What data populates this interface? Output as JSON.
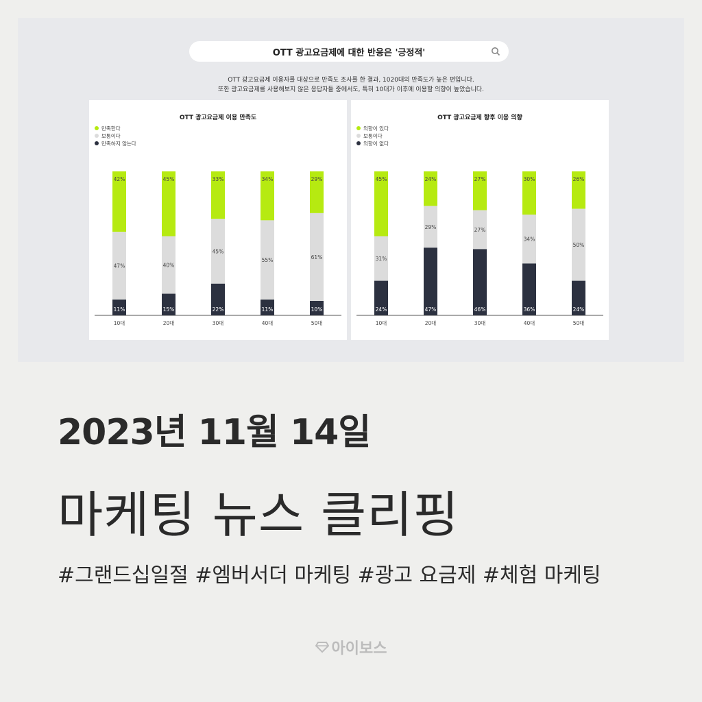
{
  "search": {
    "title": "OTT 광고요금제에 대한 반응은 '긍정적'"
  },
  "description": [
    "OTT 광고요금제 이용자를 대상으로 만족도 조사를 한 결과, 1020대의 만족도가 높은 편입니다.",
    "또한 광고요금제를 사용해보지 않은 응답자들 중에서도, 특히 10대가 이후에 이용할 의향이 높았습니다."
  ],
  "colors": {
    "green": "#b6ea11",
    "gray": "#dcdcdc",
    "navy": "#2c3140"
  },
  "chart_data": [
    {
      "type": "bar",
      "stacked": true,
      "title": "OTT 광고요금제 이용 만족도",
      "categories": [
        "10대",
        "20대",
        "30대",
        "40대",
        "50대"
      ],
      "series": [
        {
          "name": "만족한다",
          "values": [
            42,
            45,
            33,
            34,
            29
          ],
          "color": "#b6ea11"
        },
        {
          "name": "보통이다",
          "values": [
            47,
            40,
            45,
            55,
            61
          ],
          "color": "#dcdcdc"
        },
        {
          "name": "만족하지 않는다",
          "values": [
            11,
            15,
            22,
            11,
            10
          ],
          "color": "#2c3140"
        }
      ],
      "legend": "top-left"
    },
    {
      "type": "bar",
      "stacked": true,
      "title": "OTT 광고요금제 향후 이용 의향",
      "categories": [
        "10대",
        "20대",
        "30대",
        "40대",
        "50대"
      ],
      "series": [
        {
          "name": "의향이 있다",
          "values": [
            45,
            24,
            27,
            30,
            26
          ],
          "color": "#b6ea11"
        },
        {
          "name": "보통이다",
          "values": [
            31,
            29,
            27,
            34,
            50
          ],
          "color": "#dcdcdc"
        },
        {
          "name": "의향이 없다",
          "values": [
            24,
            47,
            46,
            36,
            24
          ],
          "color": "#2c3140"
        }
      ],
      "legend": "top-left"
    }
  ],
  "date": "2023년 11월 14일",
  "headline": "마케팅 뉴스 클리핑",
  "tags": "#그랜드십일절 #엠버서더 마케팅 #광고 요금제 #체험 마케팅",
  "brand": {
    "name": "아이보스",
    "icon": "diamond-logo-icon"
  }
}
